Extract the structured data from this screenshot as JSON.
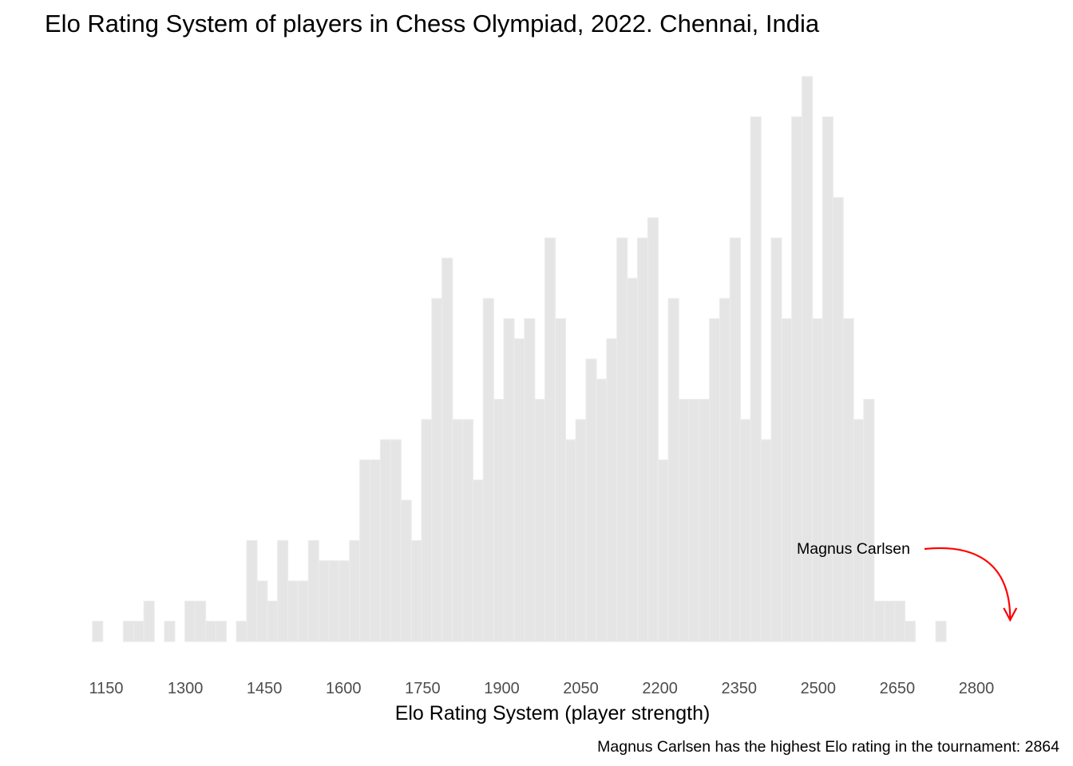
{
  "chart_data": {
    "type": "bar",
    "title": "Elo Rating System of players in Chess Olympiad, 2022. Chennai, India",
    "xlabel": "Elo Rating System (player strength)",
    "ylabel": "",
    "caption": "Magnus Carlsen has the highest Elo rating in the tournament: 2864",
    "x_ticks": [
      "1150",
      "1300",
      "1450",
      "1600",
      "1750",
      "1900",
      "2050",
      "2200",
      "2350",
      "2500",
      "2650",
      "2800"
    ],
    "x_tick_values": [
      1150,
      1300,
      1450,
      1600,
      1750,
      1900,
      2050,
      2200,
      2350,
      2500,
      2650,
      2800
    ],
    "bin_start": 1124,
    "bin_width": 19.5,
    "values": [
      1,
      0,
      0,
      1,
      1,
      2,
      0,
      1,
      0,
      2,
      2,
      1,
      1,
      0,
      1,
      5,
      3,
      2,
      5,
      3,
      3,
      5,
      4,
      4,
      4,
      5,
      9,
      9,
      10,
      10,
      7,
      5,
      11,
      17,
      19,
      11,
      11,
      8,
      17,
      12,
      16,
      15,
      16,
      12,
      20,
      16,
      10,
      11,
      14,
      13,
      15,
      20,
      18,
      20,
      21,
      9,
      17,
      12,
      12,
      12,
      16,
      17,
      20,
      11,
      26,
      10,
      20,
      16,
      26,
      28,
      16,
      26,
      22,
      16,
      11,
      12,
      2,
      2,
      2,
      1,
      0,
      0,
      1
    ],
    "annotation": {
      "label": "Magnus Carlsen",
      "value": 2864,
      "arrow_color": "#ff0000"
    },
    "ylim": [
      0,
      28
    ],
    "grid": false,
    "bar_fill": "#e5e5e5",
    "bar_outline": "#ebebeb"
  }
}
